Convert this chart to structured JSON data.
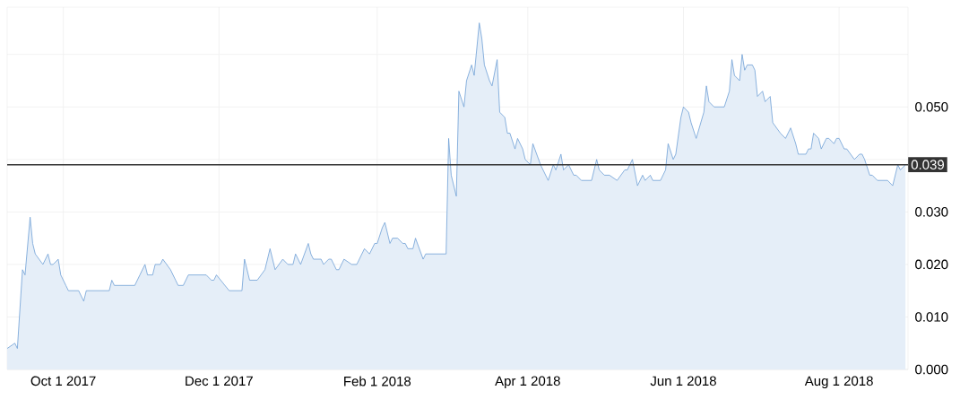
{
  "chart_data": {
    "type": "area",
    "x": [
      "2017-09-09",
      "2017-09-12",
      "2017-09-13",
      "2017-09-15",
      "2017-09-16",
      "2017-09-18",
      "2017-09-19",
      "2017-09-20",
      "2017-09-23",
      "2017-09-25",
      "2017-09-26",
      "2017-09-27",
      "2017-09-29",
      "2017-09-30",
      "2017-10-02",
      "2017-10-03",
      "2017-10-07",
      "2017-10-09",
      "2017-10-10",
      "2017-10-19",
      "2017-10-20",
      "2017-10-21",
      "2017-10-29",
      "2017-10-31",
      "2017-11-02",
      "2017-11-03",
      "2017-11-05",
      "2017-11-06",
      "2017-11-08",
      "2017-11-09",
      "2017-11-12",
      "2017-11-14",
      "2017-11-15",
      "2017-11-17",
      "2017-11-19",
      "2017-11-26",
      "2017-11-28",
      "2017-11-29",
      "2017-11-30",
      "2017-12-05",
      "2017-12-10",
      "2017-12-11",
      "2017-12-13",
      "2017-12-16",
      "2017-12-19",
      "2017-12-21",
      "2017-12-23",
      "2017-12-26",
      "2017-12-28",
      "2017-12-30",
      "2017-12-31",
      "2018-01-02",
      "2018-01-05",
      "2018-01-06",
      "2018-01-07",
      "2018-01-10",
      "2018-01-11",
      "2018-01-13",
      "2018-01-14",
      "2018-01-16",
      "2018-01-17",
      "2018-01-19",
      "2018-01-22",
      "2018-01-24",
      "2018-01-25",
      "2018-01-27",
      "2018-01-29",
      "2018-01-31",
      "2018-02-01",
      "2018-02-03",
      "2018-02-04",
      "2018-02-06",
      "2018-02-07",
      "2018-02-09",
      "2018-02-11",
      "2018-02-12",
      "2018-02-13",
      "2018-02-15",
      "2018-02-16",
      "2018-02-19",
      "2018-02-20",
      "2018-02-28",
      "2018-03-01",
      "2018-03-02",
      "2018-03-04",
      "2018-03-05",
      "2018-03-07",
      "2018-03-08",
      "2018-03-10",
      "2018-03-11",
      "2018-03-13",
      "2018-03-14",
      "2018-03-15",
      "2018-03-17",
      "2018-03-18",
      "2018-03-20",
      "2018-03-21",
      "2018-03-23",
      "2018-03-24",
      "2018-03-25",
      "2018-03-27",
      "2018-03-28",
      "2018-03-30",
      "2018-03-31",
      "2018-04-02",
      "2018-04-03",
      "2018-04-06",
      "2018-04-08",
      "2018-04-09",
      "2018-04-11",
      "2018-04-12",
      "2018-04-14",
      "2018-04-15",
      "2018-04-17",
      "2018-04-19",
      "2018-04-20",
      "2018-04-22",
      "2018-04-26",
      "2018-04-28",
      "2018-04-29",
      "2018-05-01",
      "2018-05-03",
      "2018-05-06",
      "2018-05-09",
      "2018-05-10",
      "2018-05-12",
      "2018-05-14",
      "2018-05-16",
      "2018-05-17",
      "2018-05-19",
      "2018-05-20",
      "2018-05-23",
      "2018-05-25",
      "2018-05-26",
      "2018-05-28",
      "2018-05-29",
      "2018-05-31",
      "2018-06-01",
      "2018-06-03",
      "2018-06-04",
      "2018-06-06",
      "2018-06-09",
      "2018-06-10",
      "2018-06-11",
      "2018-06-13",
      "2018-06-17",
      "2018-06-19",
      "2018-06-20",
      "2018-06-21",
      "2018-06-23",
      "2018-06-24",
      "2018-06-25",
      "2018-06-26",
      "2018-06-28",
      "2018-06-29",
      "2018-06-30",
      "2018-07-02",
      "2018-07-03",
      "2018-07-05",
      "2018-07-06",
      "2018-07-09",
      "2018-07-11",
      "2018-07-13",
      "2018-07-15",
      "2018-07-16",
      "2018-07-19",
      "2018-07-20",
      "2018-07-21",
      "2018-07-22",
      "2018-07-24",
      "2018-07-25",
      "2018-07-27",
      "2018-07-28",
      "2018-07-30",
      "2018-07-31",
      "2018-08-01",
      "2018-08-03",
      "2018-08-04",
      "2018-08-07",
      "2018-08-09",
      "2018-08-10",
      "2018-08-11",
      "2018-08-13",
      "2018-08-14",
      "2018-08-16",
      "2018-08-20",
      "2018-08-22",
      "2018-08-24",
      "2018-08-25",
      "2018-08-27"
    ],
    "series": [
      {
        "color": "#6fa0d6",
        "values": [
          0.004,
          0.005,
          0.004,
          0.019,
          0.018,
          0.029,
          0.024,
          0.022,
          0.02,
          0.022,
          0.02,
          0.02,
          0.021,
          0.018,
          0.016,
          0.015,
          0.015,
          0.013,
          0.015,
          0.015,
          0.017,
          0.016,
          0.016,
          0.018,
          0.02,
          0.018,
          0.018,
          0.02,
          0.02,
          0.021,
          0.019,
          0.017,
          0.016,
          0.016,
          0.018,
          0.018,
          0.017,
          0.017,
          0.018,
          0.015,
          0.015,
          0.021,
          0.017,
          0.017,
          0.019,
          0.023,
          0.019,
          0.021,
          0.02,
          0.02,
          0.022,
          0.02,
          0.024,
          0.022,
          0.021,
          0.021,
          0.02,
          0.021,
          0.021,
          0.019,
          0.019,
          0.021,
          0.02,
          0.02,
          0.021,
          0.023,
          0.022,
          0.024,
          0.024,
          0.027,
          0.028,
          0.024,
          0.025,
          0.025,
          0.024,
          0.024,
          0.023,
          0.023,
          0.025,
          0.021,
          0.022,
          0.022,
          0.044,
          0.037,
          0.033,
          0.053,
          0.05,
          0.055,
          0.058,
          0.056,
          0.066,
          0.063,
          0.058,
          0.055,
          0.054,
          0.059,
          0.049,
          0.048,
          0.045,
          0.045,
          0.042,
          0.044,
          0.042,
          0.04,
          0.039,
          0.043,
          0.039,
          0.037,
          0.036,
          0.039,
          0.038,
          0.041,
          0.038,
          0.039,
          0.037,
          0.037,
          0.036,
          0.036,
          0.04,
          0.038,
          0.037,
          0.037,
          0.036,
          0.038,
          0.038,
          0.04,
          0.035,
          0.037,
          0.036,
          0.037,
          0.036,
          0.036,
          0.038,
          0.043,
          0.04,
          0.041,
          0.048,
          0.05,
          0.049,
          0.047,
          0.044,
          0.049,
          0.054,
          0.051,
          0.05,
          0.05,
          0.053,
          0.059,
          0.056,
          0.055,
          0.06,
          0.057,
          0.058,
          0.058,
          0.057,
          0.052,
          0.053,
          0.051,
          0.052,
          0.047,
          0.045,
          0.044,
          0.046,
          0.043,
          0.041,
          0.041,
          0.042,
          0.042,
          0.045,
          0.044,
          0.042,
          0.044,
          0.044,
          0.043,
          0.044,
          0.044,
          0.042,
          0.042,
          0.04,
          0.041,
          0.041,
          0.04,
          0.037,
          0.037,
          0.036,
          0.036,
          0.035,
          0.039,
          0.038,
          0.039
        ]
      }
    ],
    "xlim": [
      "2017-09-09",
      "2018-08-28"
    ],
    "xticks": [
      {
        "value": "2017-10-01",
        "label": "Oct 1 2017"
      },
      {
        "value": "2017-12-01",
        "label": "Dec 1 2017"
      },
      {
        "value": "2018-02-01",
        "label": "Feb 1 2018"
      },
      {
        "value": "2018-04-01",
        "label": "Apr 1 2018"
      },
      {
        "value": "2018-06-01",
        "label": "Jun 1 2018"
      },
      {
        "value": "2018-08-01",
        "label": "Aug 1 2018"
      }
    ],
    "ylim": [
      0,
      0.069
    ],
    "yticks": [
      {
        "value": 0,
        "label": "0.000"
      },
      {
        "value": 0.01,
        "label": "0.010"
      },
      {
        "value": 0.02,
        "label": "0.020"
      },
      {
        "value": 0.03,
        "label": "0.030"
      },
      {
        "value": 0.04,
        "label": null
      },
      {
        "value": 0.05,
        "label": "0.050"
      },
      {
        "value": 0.06,
        "label": null
      }
    ],
    "ref_lines": [
      {
        "axis": "y",
        "value": 0.039,
        "label": "0.039",
        "color": "#333333"
      }
    ],
    "grid": true
  }
}
